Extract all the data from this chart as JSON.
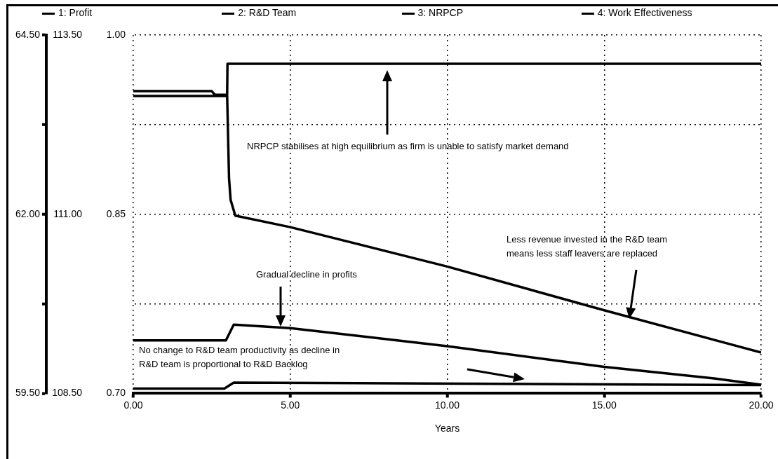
{
  "chart_data": {
    "type": "line",
    "xlabel": "Years",
    "legend": "top",
    "grid": true,
    "marker": "none",
    "xlim": [
      0,
      20
    ],
    "xticks": [
      {
        "value": 0,
        "label": "0.00"
      },
      {
        "value": 5,
        "label": "5.00"
      },
      {
        "value": 10,
        "label": "10.00"
      },
      {
        "value": 15,
        "label": "15.00"
      },
      {
        "value": 20,
        "label": "20.00"
      }
    ],
    "ylim": [
      59.5,
      64.5
    ],
    "yticks": [
      {
        "value": 59.5,
        "label": "59.50"
      },
      {
        "value": 60.75,
        "label": null
      },
      {
        "value": 62,
        "label": "62.00"
      },
      {
        "value": 63.25,
        "label": null
      },
      {
        "value": 64.5,
        "label": "64.50"
      }
    ],
    "y2lim": [
      108.5,
      113.5
    ],
    "y2ticks": [
      {
        "value": 108.5,
        "label": "108.50"
      },
      {
        "value": 111,
        "label": "111.00"
      },
      {
        "value": 113.5,
        "label": "113.50"
      }
    ],
    "y3lim": [
      0.7,
      1.0
    ],
    "y3ticks": [
      {
        "value": 0.7,
        "label": "0.70"
      },
      {
        "value": 0.85,
        "label": "0.85"
      },
      {
        "value": 1.0,
        "label": "1.00"
      }
    ],
    "series": [
      {
        "name": "1: Profit",
        "color": "#000000",
        "x": [
          0,
          2.95,
          3.2,
          5,
          10,
          15,
          18.5,
          20
        ],
        "values": [
          60.24,
          60.24,
          60.46,
          60.41,
          60.16,
          59.87,
          59.71,
          59.62
        ]
      },
      {
        "name": "2: R&D Team",
        "color": "#000000",
        "axis": "y2",
        "x": [
          0,
          2.99,
          3.05,
          3.1,
          3.25,
          5,
          10,
          15,
          20
        ],
        "values": [
          112.65,
          112.65,
          111.5,
          111.2,
          110.98,
          110.82,
          110.27,
          109.66,
          109.07
        ]
      },
      {
        "name": "3: NRPCP",
        "color": "#000000",
        "axis": "y3",
        "x": [
          0,
          2.5,
          2.6,
          2.99,
          3,
          20
        ],
        "values": [
          0.953,
          0.953,
          0.95,
          0.95,
          0.976,
          0.976
        ]
      },
      {
        "name": "4: Work Effectiveness",
        "color": "#000000",
        "axis": "y3",
        "x": [
          0,
          2.9,
          3.2,
          20
        ],
        "values": [
          0.704,
          0.704,
          0.709,
          0.707
        ]
      }
    ],
    "annotations": [
      "NRPCP stabilises at high equilibrium as firm is unable to satisfy market demand",
      "Less revenue invested in the R&D team means less staff leavers are replaced",
      "Gradual decline in profits",
      "No change to R&D team productivity as decline in R&D team is proportional to R&D Backlog"
    ]
  }
}
